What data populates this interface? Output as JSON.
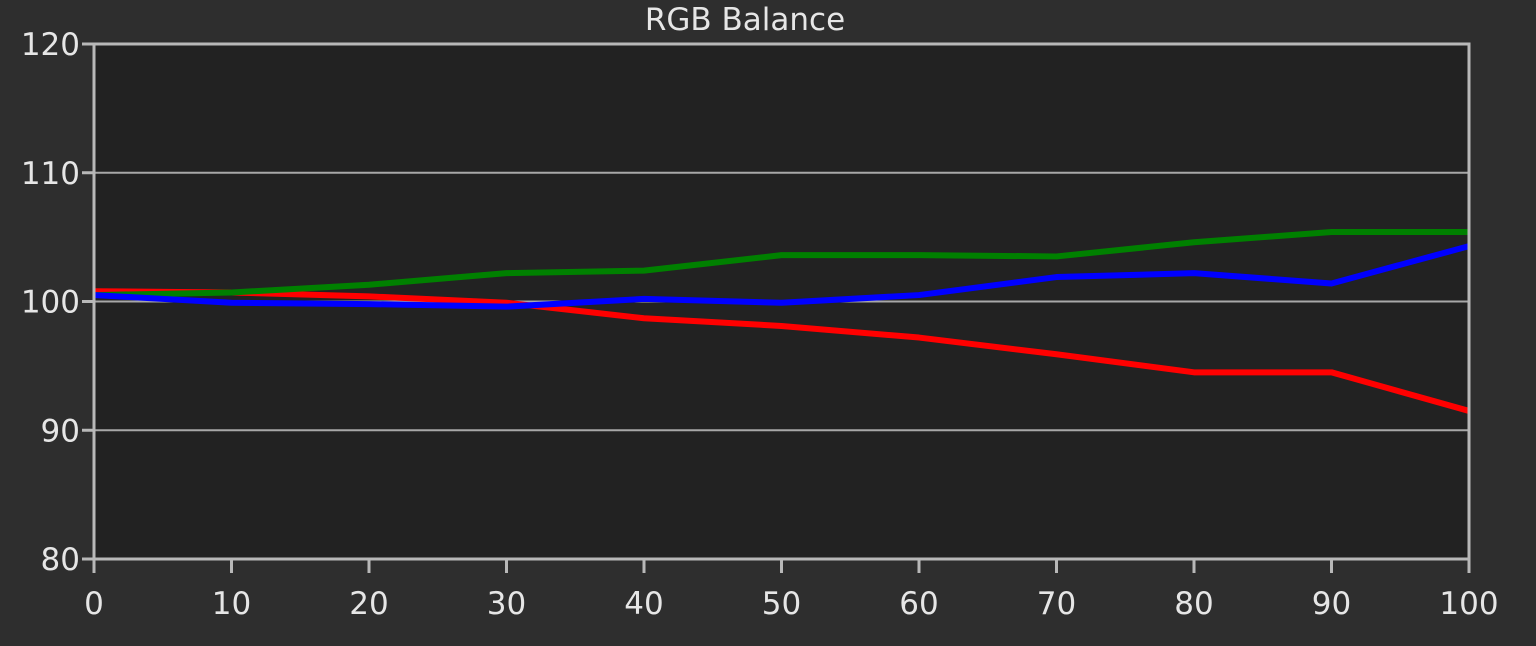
{
  "chart_data": {
    "type": "line",
    "title": "RGB Balance",
    "xlabel": "",
    "ylabel": "",
    "x": [
      0,
      10,
      20,
      30,
      40,
      50,
      60,
      70,
      80,
      90,
      100
    ],
    "xlim": [
      0,
      100
    ],
    "ylim": [
      80,
      120
    ],
    "x_ticks": [
      "0",
      "10",
      "20",
      "30",
      "40",
      "50",
      "60",
      "70",
      "80",
      "90",
      "100"
    ],
    "y_ticks": [
      "80",
      "90",
      "100",
      "110",
      "120"
    ],
    "grid": "horizontal",
    "background": "#2e2e2e",
    "plot_background": "#222222",
    "series": [
      {
        "color": "#ff0000",
        "values": [
          100.8,
          100.7,
          100.4,
          99.9,
          98.7,
          98.1,
          97.2,
          95.9,
          94.5,
          94.5,
          91.5
        ]
      },
      {
        "color": "#008000",
        "values": [
          100.5,
          100.7,
          101.3,
          102.2,
          102.4,
          103.6,
          103.6,
          103.5,
          104.6,
          105.4,
          105.4
        ]
      },
      {
        "color": "#0000ff",
        "values": [
          100.5,
          99.9,
          99.8,
          99.6,
          100.2,
          99.9,
          100.5,
          101.9,
          102.2,
          101.4,
          104.3
        ]
      }
    ]
  }
}
